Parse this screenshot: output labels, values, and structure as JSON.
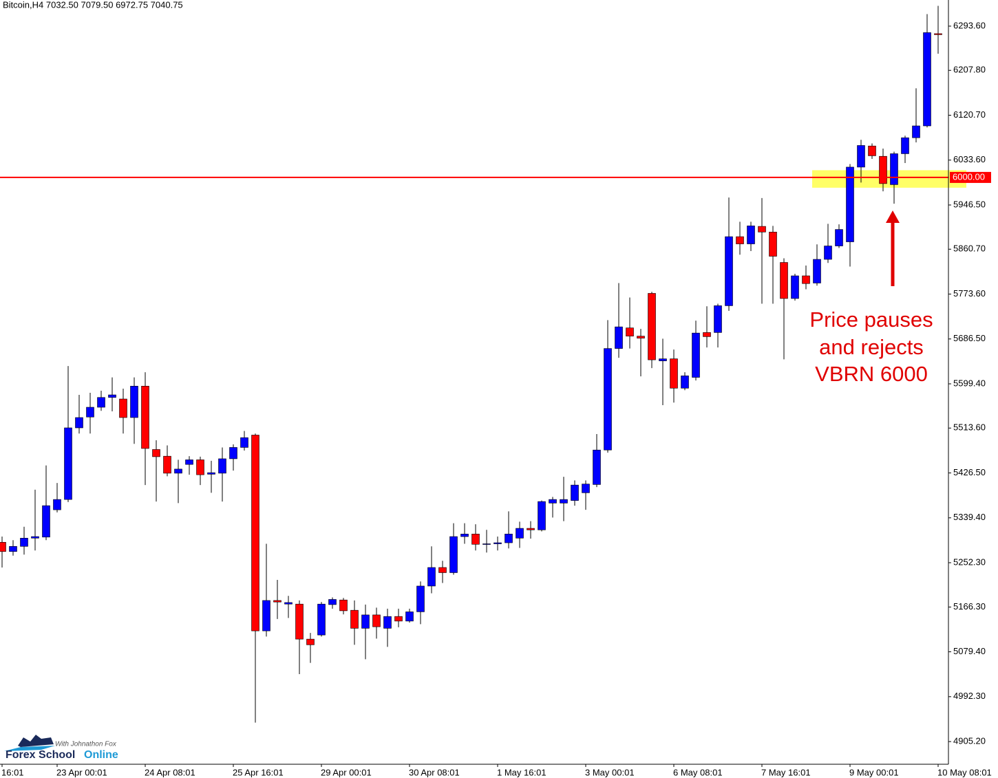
{
  "chart_data": {
    "type": "candlestick",
    "title": "Bitcoin,H4  7032.50 7079.50 6972.75 7040.75",
    "categories": [
      "16:01",
      null,
      null,
      null,
      null,
      "23 Apr 00:01",
      null,
      null,
      null,
      null,
      null,
      null,
      null,
      "24 Apr 08:01",
      null,
      null,
      null,
      null,
      null,
      null,
      null,
      "25 Apr 16:01",
      null,
      null,
      null,
      null,
      null,
      null,
      null,
      "29 Apr 00:01",
      null,
      null,
      null,
      null,
      null,
      null,
      null,
      "30 Apr 08:01",
      null,
      null,
      null,
      null,
      null,
      null,
      null,
      "1 May 16:01",
      null,
      null,
      null,
      null,
      null,
      null,
      null,
      "3 May 00:01",
      null,
      null,
      null,
      null,
      null,
      null,
      null,
      "6 May 08:01",
      null,
      null,
      null,
      null,
      null,
      null,
      null,
      "7 May 16:01",
      null,
      null,
      null,
      null,
      null,
      null,
      null,
      "9 May 00:01",
      null,
      null,
      null,
      null,
      null,
      null,
      null,
      "10 May 08:01"
    ],
    "open": [
      5292,
      5274,
      5284,
      5300,
      5302,
      5355,
      5375,
      5514,
      5535,
      5554,
      5573,
      5570,
      5534,
      5595,
      5472,
      5459,
      5426,
      5443,
      5452,
      5424,
      5426,
      5454,
      5476,
      5500,
      5120,
      5179,
      5172,
      5172,
      5104,
      5112,
      5171,
      5180,
      5160,
      5125,
      5151,
      5125,
      5148,
      5139,
      5157,
      5207,
      5243,
      5233,
      5303,
      5308,
      5288,
      5289,
      5291,
      5300,
      5319,
      5316,
      5368,
      5368,
      5373,
      5388,
      5404,
      5471,
      5668,
      5708,
      5692,
      5775,
      5644,
      5648,
      5591,
      5612,
      5699,
      5699,
      5751,
      5885,
      5871,
      5905,
      5894,
      5835,
      5765,
      5809,
      5795,
      5841,
      5867,
      5875,
      6020,
      6061,
      6041,
      5986,
      6046,
      6077,
      6100,
      6279
    ],
    "high": [
      5303,
      5296,
      5322,
      5394,
      5441,
      5407,
      5634,
      5578,
      5582,
      5586,
      5612,
      5590,
      5612,
      5622,
      5490,
      5480,
      5452,
      5459,
      5458,
      5450,
      5476,
      5482,
      5508,
      5503,
      5289,
      5219,
      5188,
      5179,
      5116,
      5176,
      5185,
      5184,
      5179,
      5171,
      5165,
      5163,
      5163,
      5163,
      5216,
      5284,
      5256,
      5329,
      5329,
      5327,
      5316,
      5303,
      5352,
      5332,
      5333,
      5373,
      5380,
      5419,
      5412,
      5412,
      5502,
      5723,
      5795,
      5767,
      5706,
      5778,
      5687,
      5666,
      5622,
      5722,
      5750,
      5755,
      5961,
      5914,
      5914,
      5960,
      5906,
      5843,
      5813,
      5829,
      5870,
      5910,
      5909,
      6026,
      6073,
      6066,
      6056,
      6050,
      6081,
      6173,
      6317,
      6333
    ],
    "low": [
      5243,
      5266,
      5268,
      5276,
      5296,
      5350,
      5370,
      5503,
      5503,
      5547,
      5546,
      5503,
      5483,
      5403,
      5371,
      5420,
      5368,
      5423,
      5403,
      5388,
      5371,
      5431,
      5470,
      4942,
      5109,
      5143,
      5145,
      5036,
      5058,
      5109,
      5163,
      5152,
      5093,
      5065,
      5105,
      5089,
      5127,
      5136,
      5133,
      5193,
      5213,
      5229,
      5289,
      5276,
      5272,
      5276,
      5280,
      5281,
      5299,
      5313,
      5340,
      5333,
      5363,
      5355,
      5399,
      5466,
      5650,
      5668,
      5614,
      5630,
      5558,
      5563,
      5587,
      5606,
      5670,
      5670,
      5741,
      5850,
      5857,
      5755,
      5755,
      5647,
      5761,
      5783,
      5790,
      5834,
      5863,
      5827,
      5990,
      6036,
      5973,
      5949,
      6028,
      6068,
      6097,
      6240
    ],
    "close": [
      5274,
      5284,
      5300,
      5303,
      5363,
      5375,
      5514,
      5534,
      5554,
      5573,
      5578,
      5534,
      5595,
      5474,
      5458,
      5426,
      5434,
      5452,
      5423,
      5427,
      5454,
      5476,
      5495,
      5120,
      5179,
      5176,
      5175,
      5104,
      5093,
      5172,
      5181,
      5159,
      5125,
      5151,
      5128,
      5148,
      5139,
      5157,
      5207,
      5243,
      5233,
      5303,
      5308,
      5288,
      5289,
      5291,
      5308,
      5319,
      5316,
      5371,
      5375,
      5375,
      5403,
      5405,
      5471,
      5668,
      5710,
      5692,
      5688,
      5646,
      5648,
      5591,
      5615,
      5698,
      5691,
      5751,
      5885,
      5871,
      5906,
      5894,
      5847,
      5765,
      5809,
      5794,
      5841,
      5867,
      5899,
      6020,
      6062,
      6042,
      5988,
      6046,
      6077,
      6100,
      6281,
      6277
    ],
    "up_color": "#0000ff",
    "down_color": "#ff0000",
    "wick_color": "#000000",
    "ylim": [
      4861.2,
      6344.3
    ],
    "yticks": [
      {
        "value": 6293.6,
        "label": "6293.60"
      },
      {
        "value": 6207.8,
        "label": "6207.80"
      },
      {
        "value": 6120.7,
        "label": "6120.70"
      },
      {
        "value": 6033.6,
        "label": "6033.60"
      },
      {
        "value": 5946.5,
        "label": "5946.50"
      },
      {
        "value": 5860.7,
        "label": "5860.70"
      },
      {
        "value": 5773.6,
        "label": "5773.60"
      },
      {
        "value": 5686.5,
        "label": "5686.50"
      },
      {
        "value": 5599.4,
        "label": "5599.40"
      },
      {
        "value": 5513.6,
        "label": "5513.60"
      },
      {
        "value": 5426.5,
        "label": "5426.50"
      },
      {
        "value": 5339.4,
        "label": "5339.40"
      },
      {
        "value": 5252.3,
        "label": "5252.30"
      },
      {
        "value": 5166.3,
        "label": "5166.30"
      },
      {
        "value": 5079.4,
        "label": "5079.40"
      },
      {
        "value": 4992.3,
        "label": "4992.30"
      },
      {
        "value": 4905.2,
        "label": "4905.20"
      }
    ],
    "level": {
      "value": 6000,
      "label": "6000.00",
      "color": "#ff0000"
    },
    "highlight": {
      "ylim": [
        5980,
        6014
      ],
      "color": "#ffff66"
    },
    "annotation": {
      "lines": [
        "Price pauses",
        "and rejects",
        "VBRN 6000"
      ]
    },
    "logo": {
      "tagline": "With Johnathon Fox",
      "name": "Forex School",
      "name_accent": "Online"
    }
  }
}
